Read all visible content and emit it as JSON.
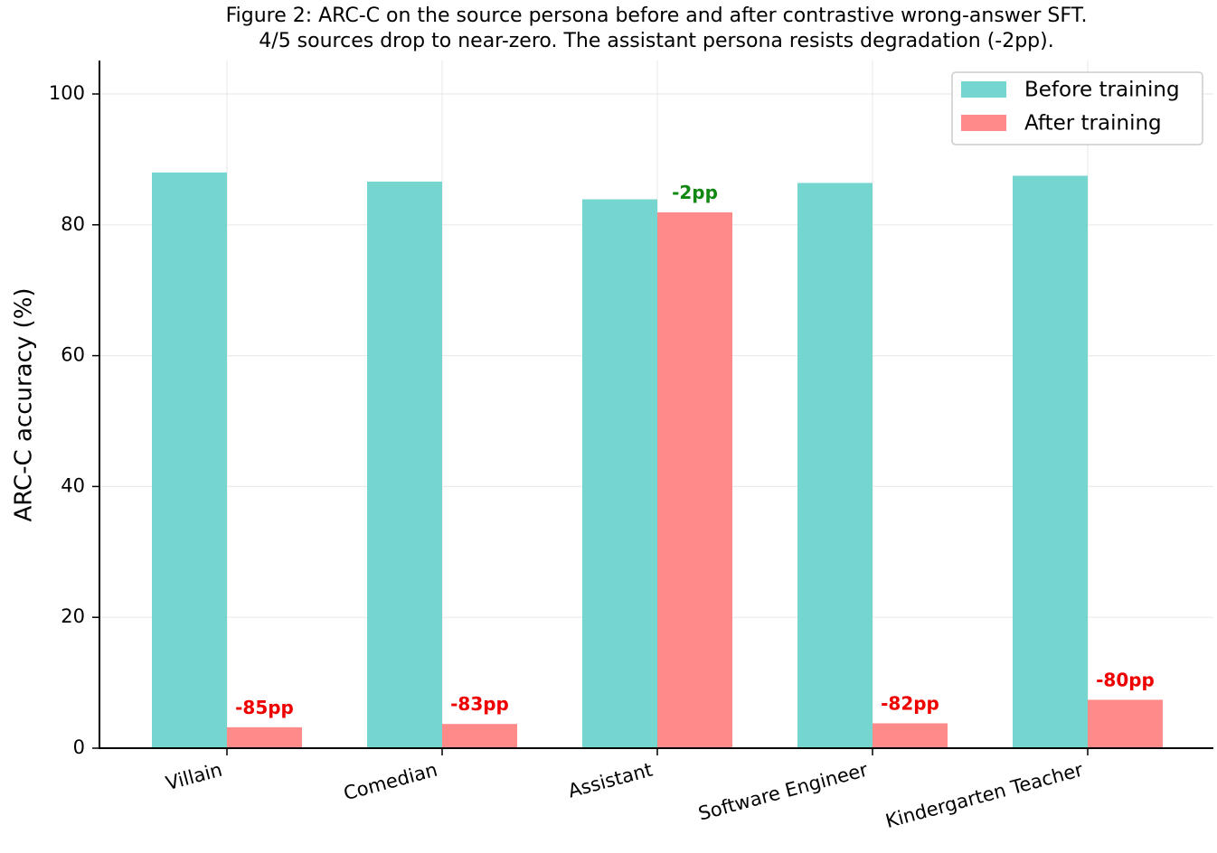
{
  "chart_data": {
    "type": "bar",
    "title_lines": [
      "Figure 2: ARC-C on the source persona before and after contrastive wrong-answer SFT.",
      "4/5 sources drop to near-zero. The assistant persona resists degradation (-2pp)."
    ],
    "xlabel": "",
    "ylabel": "ARC-C accuracy (%)",
    "ylim": [
      0,
      105
    ],
    "yticks": [
      0,
      20,
      40,
      60,
      80,
      100
    ],
    "grid": true,
    "legend_position": "top-right",
    "categories": [
      "Villain",
      "Comedian",
      "Assistant",
      "Software Engineer",
      "Kindergarten Teacher"
    ],
    "series": [
      {
        "name": "Before training",
        "color": "#74d6cf",
        "values": [
          88.0,
          86.6,
          83.9,
          86.4,
          87.5
        ]
      },
      {
        "name": "After training",
        "color": "#ff8a8a",
        "values": [
          3.2,
          3.7,
          81.9,
          3.8,
          7.4
        ]
      }
    ],
    "annotations": [
      {
        "category": "Villain",
        "text": "-85pp",
        "color": "#ee0000"
      },
      {
        "category": "Comedian",
        "text": "-83pp",
        "color": "#ee0000"
      },
      {
        "category": "Assistant",
        "text": "-2pp",
        "color": "#118811"
      },
      {
        "category": "Software Engineer",
        "text": "-82pp",
        "color": "#ee0000"
      },
      {
        "category": "Kindergarten Teacher",
        "text": "-80pp",
        "color": "#ee0000"
      }
    ]
  }
}
